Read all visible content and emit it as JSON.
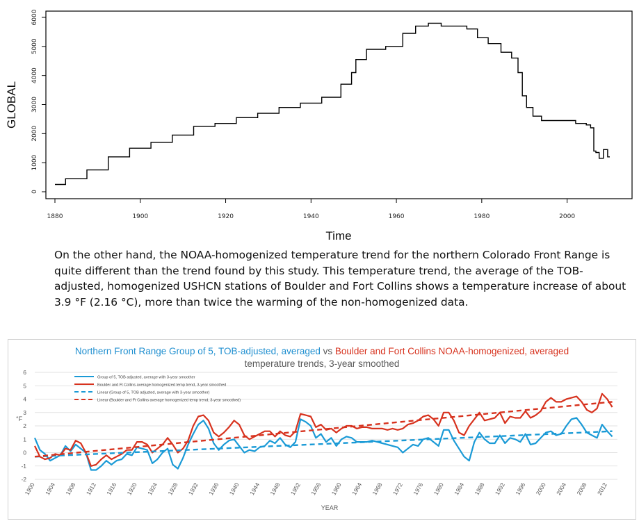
{
  "chart_data": [
    {
      "type": "line",
      "xlabel": "Time",
      "ylabel": "GLOBAL",
      "xlim": [
        1880,
        2010
      ],
      "ylim": [
        0,
        6000
      ],
      "xticks": [
        1880,
        1900,
        1920,
        1940,
        1960,
        1980,
        2000
      ],
      "yticks": [
        0,
        1000,
        2000,
        3000,
        4000,
        5000,
        6000
      ],
      "grid": false,
      "color": "#000000",
      "series": [
        {
          "x": [
            1880,
            1885,
            1890,
            1895,
            1900,
            1905,
            1910,
            1915,
            1920,
            1925,
            1930,
            1935,
            1940,
            1945,
            1949,
            1950,
            1951,
            1955,
            1960,
            1963,
            1966,
            1969,
            1972,
            1975,
            1978,
            1980,
            1983,
            1986,
            1988,
            1989,
            1990,
            1991,
            1993,
            1995,
            2000,
            2004,
            2005,
            2006,
            2006.5,
            2007,
            2008,
            2009,
            2010
          ],
          "y": [
            250,
            450,
            750,
            1200,
            1500,
            1700,
            1950,
            2250,
            2350,
            2550,
            2700,
            2900,
            3050,
            3250,
            3700,
            4100,
            4550,
            4900,
            5000,
            5450,
            5700,
            5800,
            5700,
            5700,
            5600,
            5300,
            5100,
            4800,
            4600,
            4100,
            3300,
            2900,
            2600,
            2450,
            2450,
            2350,
            2300,
            2200,
            1400,
            1350,
            1150,
            1450,
            1200
          ]
        }
      ]
    },
    {
      "type": "line",
      "title_parts": [
        {
          "text": "Northern Front Range Group of 5, TOB-adjusted, averaged",
          "color": "#1f8fd0"
        },
        {
          "text": " vs ",
          "color": "#595959"
        },
        {
          "text": "Boulder and Fort Collins NOAA-homogenized, averaged",
          "color": "#d7321e"
        }
      ],
      "subtitle": "temperature trends, 3-year smoothed",
      "xlabel": "YEAR",
      "ylabel": "°F",
      "xlim": [
        1900,
        2014
      ],
      "ylim": [
        -2,
        6
      ],
      "xticks": [
        1900,
        1904,
        1908,
        1912,
        1916,
        1920,
        1924,
        1928,
        1932,
        1936,
        1940,
        1944,
        1948,
        1952,
        1956,
        1960,
        1964,
        1968,
        1972,
        1976,
        1980,
        1984,
        1988,
        1992,
        1996,
        2000,
        2004,
        2008,
        2012
      ],
      "yticks": [
        -2,
        -1,
        0,
        1,
        2,
        3,
        4,
        5,
        6
      ],
      "grid": true,
      "legend": "top-left",
      "series": [
        {
          "name": "Group of 5, TOB adjusted, average with 3-year smoother",
          "color": "#1a9ad6",
          "style": "solid",
          "x": [
            1900,
            1901,
            1902,
            1903,
            1904,
            1905,
            1906,
            1907,
            1908,
            1909,
            1910,
            1911,
            1912,
            1913,
            1914,
            1915,
            1916,
            1917,
            1918,
            1919,
            1920,
            1921,
            1922,
            1923,
            1924,
            1925,
            1926,
            1927,
            1928,
            1929,
            1930,
            1931,
            1932,
            1933,
            1934,
            1935,
            1936,
            1937,
            1938,
            1939,
            1940,
            1941,
            1942,
            1943,
            1944,
            1945,
            1946,
            1947,
            1948,
            1949,
            1950,
            1951,
            1952,
            1953,
            1954,
            1955,
            1956,
            1957,
            1958,
            1959,
            1960,
            1961,
            1962,
            1963,
            1964,
            1965,
            1966,
            1967,
            1968,
            1969,
            1970,
            1971,
            1972,
            1973,
            1974,
            1975,
            1976,
            1977,
            1978,
            1979,
            1980,
            1981,
            1982,
            1983,
            1984,
            1985,
            1986,
            1987,
            1988,
            1989,
            1990,
            1991,
            1992,
            1993,
            1994,
            1995,
            1996,
            1997,
            1998,
            1999,
            2000,
            2001,
            2002,
            2003,
            2004,
            2005,
            2006,
            2007,
            2008,
            2009,
            2010,
            2011,
            2012,
            2013
          ],
          "y": [
            1.1,
            0.2,
            -0.1,
            -0.6,
            -0.4,
            -0.2,
            0.5,
            0.1,
            0.6,
            0.3,
            0.0,
            -1.3,
            -1.3,
            -1.0,
            -0.6,
            -0.9,
            -0.6,
            -0.5,
            -0.1,
            -0.2,
            0.4,
            0.3,
            0.2,
            -0.8,
            -0.5,
            0.0,
            0.3,
            -0.9,
            -1.2,
            -0.4,
            0.6,
            1.4,
            2.1,
            2.4,
            1.8,
            0.7,
            0.2,
            0.6,
            0.9,
            1.0,
            0.5,
            0.0,
            0.2,
            0.1,
            0.4,
            0.5,
            0.9,
            0.7,
            1.1,
            0.6,
            0.4,
            0.8,
            2.5,
            2.3,
            2.0,
            1.1,
            1.4,
            0.8,
            1.1,
            0.5,
            1.0,
            1.2,
            1.1,
            0.8,
            0.8,
            0.8,
            0.9,
            0.8,
            0.7,
            0.6,
            0.5,
            0.4,
            0.0,
            0.3,
            0.6,
            0.5,
            1.0,
            1.1,
            0.8,
            0.5,
            1.7,
            1.7,
            0.9,
            0.3,
            -0.3,
            -0.6,
            0.8,
            1.5,
            1.0,
            0.7,
            0.7,
            1.3,
            0.7,
            1.1,
            1.0,
            0.8,
            1.4,
            0.6,
            0.7,
            1.1,
            1.5,
            1.6,
            1.3,
            1.4,
            2.0,
            2.5,
            2.6,
            2.1,
            1.5,
            1.3,
            1.1,
            2.1,
            1.6,
            1.2
          ]
        },
        {
          "name": "Boulder and Ft Collins average homogenized temp trend, 3-year smoothed",
          "color": "#d7321e",
          "style": "solid",
          "x": [
            1900,
            1901,
            1902,
            1903,
            1904,
            1905,
            1906,
            1907,
            1908,
            1909,
            1910,
            1911,
            1912,
            1913,
            1914,
            1915,
            1916,
            1917,
            1918,
            1919,
            1920,
            1921,
            1922,
            1923,
            1924,
            1925,
            1926,
            1927,
            1928,
            1929,
            1930,
            1931,
            1932,
            1933,
            1934,
            1935,
            1936,
            1937,
            1938,
            1939,
            1940,
            1941,
            1942,
            1943,
            1944,
            1945,
            1946,
            1947,
            1948,
            1949,
            1950,
            1951,
            1952,
            1953,
            1954,
            1955,
            1956,
            1957,
            1958,
            1959,
            1960,
            1961,
            1962,
            1963,
            1964,
            1965,
            1966,
            1967,
            1968,
            1969,
            1970,
            1971,
            1972,
            1973,
            1974,
            1975,
            1976,
            1977,
            1978,
            1979,
            1980,
            1981,
            1982,
            1983,
            1984,
            1985,
            1986,
            1987,
            1988,
            1989,
            1990,
            1991,
            1992,
            1993,
            1994,
            1995,
            1996,
            1997,
            1998,
            1999,
            2000,
            2001,
            2002,
            2003,
            2004,
            2005,
            2006,
            2007,
            2008,
            2009,
            2010,
            2011,
            2012,
            2013
          ],
          "y": [
            0.5,
            -0.3,
            -0.5,
            -0.4,
            -0.1,
            -0.2,
            0.3,
            0.2,
            0.9,
            0.7,
            0.0,
            -1.0,
            -0.9,
            -0.5,
            -0.2,
            -0.5,
            -0.3,
            -0.1,
            0.2,
            0.2,
            0.8,
            0.8,
            0.6,
            0.0,
            0.3,
            0.6,
            1.1,
            0.6,
            0.0,
            0.3,
            0.9,
            2.0,
            2.7,
            2.8,
            2.4,
            1.5,
            1.2,
            1.5,
            1.9,
            2.4,
            2.1,
            1.3,
            1.0,
            1.2,
            1.4,
            1.6,
            1.6,
            1.2,
            1.6,
            1.3,
            1.2,
            1.6,
            2.9,
            2.8,
            2.7,
            1.9,
            2.1,
            1.7,
            1.8,
            1.5,
            1.8,
            2.0,
            2.0,
            1.8,
            1.9,
            1.9,
            1.8,
            1.8,
            1.8,
            1.7,
            1.8,
            1.7,
            1.8,
            2.1,
            2.2,
            2.4,
            2.7,
            2.8,
            2.5,
            2.0,
            3.0,
            3.0,
            2.4,
            1.5,
            1.3,
            2.0,
            2.5,
            3.0,
            2.4,
            2.5,
            2.6,
            3.0,
            2.2,
            2.7,
            2.6,
            2.6,
            3.1,
            2.6,
            2.8,
            3.1,
            3.8,
            4.1,
            3.8,
            3.8,
            4.0,
            4.1,
            4.2,
            3.8,
            3.2,
            3.0,
            3.3,
            4.4,
            4.0,
            3.4
          ]
        },
        {
          "name": "Linear (Group of 5, TOB adjusted, average with 3-year smoother)",
          "color": "#1a9ad6",
          "style": "dashed",
          "x": [
            1900,
            2013
          ],
          "y": [
            -0.3,
            1.6
          ]
        },
        {
          "name": "Linear (Boulder and Ft Collins average homogenized temp trend, 3-year smoothed)",
          "color": "#d7321e",
          "style": "dashed",
          "x": [
            1900,
            2013
          ],
          "y": [
            -0.3,
            3.8
          ]
        }
      ]
    }
  ],
  "paragraph": "On the other hand, the NOAA-homogenized temperature trend for the northern Colorado Front Range is quite different than the trend found by this study. This temperature trend, the average of the TOB-adjusted, homogenized USHCN stations of Boulder and Fort Collins shows a temperature increase of about 3.9 °F (2.16 °C), more than twice the warming of the non-homogenized data."
}
